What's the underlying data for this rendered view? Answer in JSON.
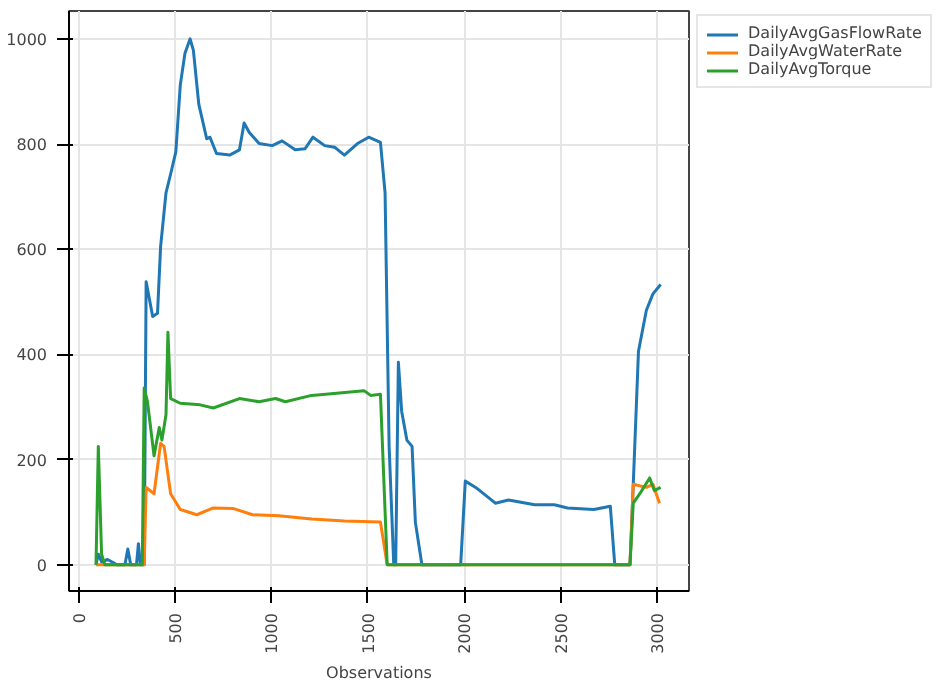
{
  "chart_data": {
    "type": "line",
    "xlabel": "Observations",
    "xlim": [
      -50,
      3165
    ],
    "ylim": [
      -50,
      1053
    ],
    "xticks": [
      0,
      500,
      1000,
      1500,
      2000,
      2500,
      3000
    ],
    "yticks": [
      0,
      200,
      400,
      600,
      800,
      1000
    ],
    "grid": true,
    "legend": "top right",
    "line_style": "solid",
    "series": [
      {
        "name": "DailyAvgGasFlowRate",
        "color": "#1f77b4",
        "x": [
          90,
          102,
          120,
          150,
          200,
          240,
          255,
          270,
          300,
          310,
          320,
          340,
          350,
          384,
          409,
          425,
          453,
          477,
          504,
          527,
          551,
          578,
          595,
          623,
          664,
          681,
          715,
          783,
          834,
          858,
          885,
          936,
          1004,
          1055,
          1123,
          1174,
          1215,
          1276,
          1327,
          1378,
          1446,
          1504,
          1565,
          1589,
          1610,
          1634,
          1644,
          1658,
          1675,
          1702,
          1729,
          1746,
          1780,
          1981,
          2005,
          2059,
          2161,
          2229,
          2365,
          2467,
          2535,
          2671,
          2757,
          2780,
          2859,
          2876,
          2903,
          2944,
          2978,
          3018
        ],
        "values": [
          0,
          20,
          5,
          10,
          0,
          0,
          30,
          0,
          0,
          40,
          0,
          0,
          538,
          472,
          478,
          605,
          707,
          743,
          785,
          912,
          972,
          1000,
          978,
          876,
          810,
          813,
          782,
          779,
          789,
          840,
          822,
          801,
          797,
          806,
          789,
          791,
          813,
          797,
          794,
          779,
          801,
          813,
          803,
          707,
          225,
          0,
          0,
          385,
          292,
          237,
          225,
          81,
          0,
          0,
          159,
          147,
          117,
          123,
          114,
          114,
          108,
          105,
          111,
          0,
          0,
          153,
          406,
          484,
          515,
          533
        ]
      },
      {
        "name": "DailyAvgWaterRate",
        "color": "#ff7f0e",
        "x": [
          90,
          340,
          350,
          391,
          425,
          443,
          477,
          527,
          613,
          698,
          800,
          902,
          1038,
          1208,
          1378,
          1565,
          1600,
          2859,
          2876,
          2944,
          2978,
          3012
        ],
        "values": [
          0,
          0,
          147,
          135,
          231,
          225,
          135,
          105,
          95,
          108,
          107,
          95,
          93,
          87,
          83,
          81,
          0,
          0,
          153,
          147,
          153,
          117
        ]
      },
      {
        "name": "DailyAvgTorque",
        "color": "#2ca02c",
        "x": [
          90,
          102,
          119,
          136,
          330,
          340,
          357,
          391,
          418,
          432,
          453,
          463,
          477,
          527,
          630,
          698,
          834,
          936,
          1021,
          1072,
          1208,
          1310,
          1480,
          1514,
          1565,
          1600,
          2859,
          2876,
          2910,
          2961,
          2985,
          3018
        ],
        "values": [
          0,
          225,
          20,
          0,
          0,
          336,
          310,
          207,
          261,
          237,
          285,
          442,
          316,
          307,
          304,
          298,
          316,
          310,
          316,
          310,
          322,
          325,
          331,
          322,
          324,
          0,
          0,
          117,
          135,
          165,
          141,
          147
        ]
      }
    ]
  }
}
